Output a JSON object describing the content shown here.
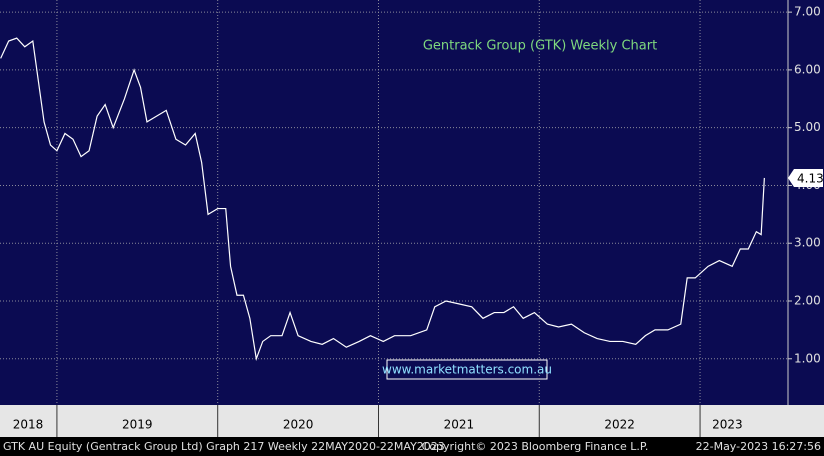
{
  "chart_data": {
    "type": "line",
    "title": "Gentrack Group (GTK) Weekly Chart",
    "annotation": "www.marketmatters.com.au",
    "footer": {
      "left": "GTK AU Equity (Gentrack Group Ltd) Graph 217  Weekly 22MAY2020-22MAY2023",
      "center": "Copyright© 2023 Bloomberg Finance L.P.",
      "right": "22-May-2023 16:27:56"
    },
    "series": [
      {
        "name": "GTK AU Equity",
        "color": "#ffffff",
        "x": [
          2018.65,
          2018.7,
          2018.75,
          2018.8,
          2018.85,
          2018.88,
          2018.92,
          2018.96,
          2019.0,
          2019.05,
          2019.1,
          2019.15,
          2019.2,
          2019.25,
          2019.3,
          2019.35,
          2019.42,
          2019.48,
          2019.52,
          2019.56,
          2019.62,
          2019.68,
          2019.74,
          2019.8,
          2019.86,
          2019.9,
          2019.94,
          2020.0,
          2020.05,
          2020.08,
          2020.12,
          2020.16,
          2020.2,
          2020.24,
          2020.28,
          2020.33,
          2020.4,
          2020.45,
          2020.5,
          2020.58,
          2020.65,
          2020.72,
          2020.8,
          2020.88,
          2020.95,
          2021.03,
          2021.1,
          2021.2,
          2021.3,
          2021.35,
          2021.42,
          2021.5,
          2021.58,
          2021.65,
          2021.72,
          2021.78,
          2021.84,
          2021.9,
          2021.97,
          2022.05,
          2022.12,
          2022.2,
          2022.28,
          2022.36,
          2022.44,
          2022.52,
          2022.6,
          2022.66,
          2022.72,
          2022.8,
          2022.88,
          2022.92,
          2022.97,
          2023.05,
          2023.12,
          2023.2,
          2023.25,
          2023.3,
          2023.35,
          2023.38,
          2023.4
        ],
        "values": [
          6.2,
          6.5,
          6.55,
          6.4,
          6.5,
          5.9,
          5.1,
          4.7,
          4.6,
          4.9,
          4.8,
          4.5,
          4.6,
          5.2,
          5.4,
          5.0,
          5.5,
          6.0,
          5.7,
          5.1,
          5.2,
          5.3,
          4.8,
          4.7,
          4.9,
          4.4,
          3.5,
          3.6,
          3.6,
          2.6,
          2.1,
          2.1,
          1.7,
          1.0,
          1.3,
          1.4,
          1.4,
          1.8,
          1.4,
          1.3,
          1.25,
          1.35,
          1.2,
          1.3,
          1.4,
          1.3,
          1.4,
          1.4,
          1.5,
          1.9,
          2.0,
          1.95,
          1.9,
          1.7,
          1.8,
          1.8,
          1.9,
          1.7,
          1.8,
          1.6,
          1.55,
          1.6,
          1.45,
          1.35,
          1.3,
          1.3,
          1.25,
          1.4,
          1.5,
          1.5,
          1.6,
          2.4,
          2.4,
          2.6,
          2.7,
          2.6,
          2.9,
          2.9,
          3.2,
          3.15,
          4.13
        ]
      }
    ],
    "xlim": [
      2018.646,
      2023.547
    ],
    "xticks": [
      {
        "value": 2018.82,
        "label": "2018"
      },
      {
        "value": 2019.5,
        "label": "2019"
      },
      {
        "value": 2020.5,
        "label": "2020"
      },
      {
        "value": 2021.5,
        "label": "2021"
      },
      {
        "value": 2022.5,
        "label": "2022"
      },
      {
        "value": 2023.17,
        "label": "2023"
      }
    ],
    "xgrid": [
      2019,
      2020,
      2021,
      2022,
      2023
    ],
    "ylim": [
      0.2,
      7.21
    ],
    "yticks": [
      {
        "value": 1,
        "label": "1.00"
      },
      {
        "value": 2,
        "label": "2.00"
      },
      {
        "value": 3,
        "label": "3.00"
      },
      {
        "value": 4,
        "label": "4.00"
      },
      {
        "value": 5,
        "label": "5.00"
      },
      {
        "value": 6,
        "label": "6.00"
      },
      {
        "value": 7,
        "label": "7.00"
      }
    ],
    "grid": true
  }
}
